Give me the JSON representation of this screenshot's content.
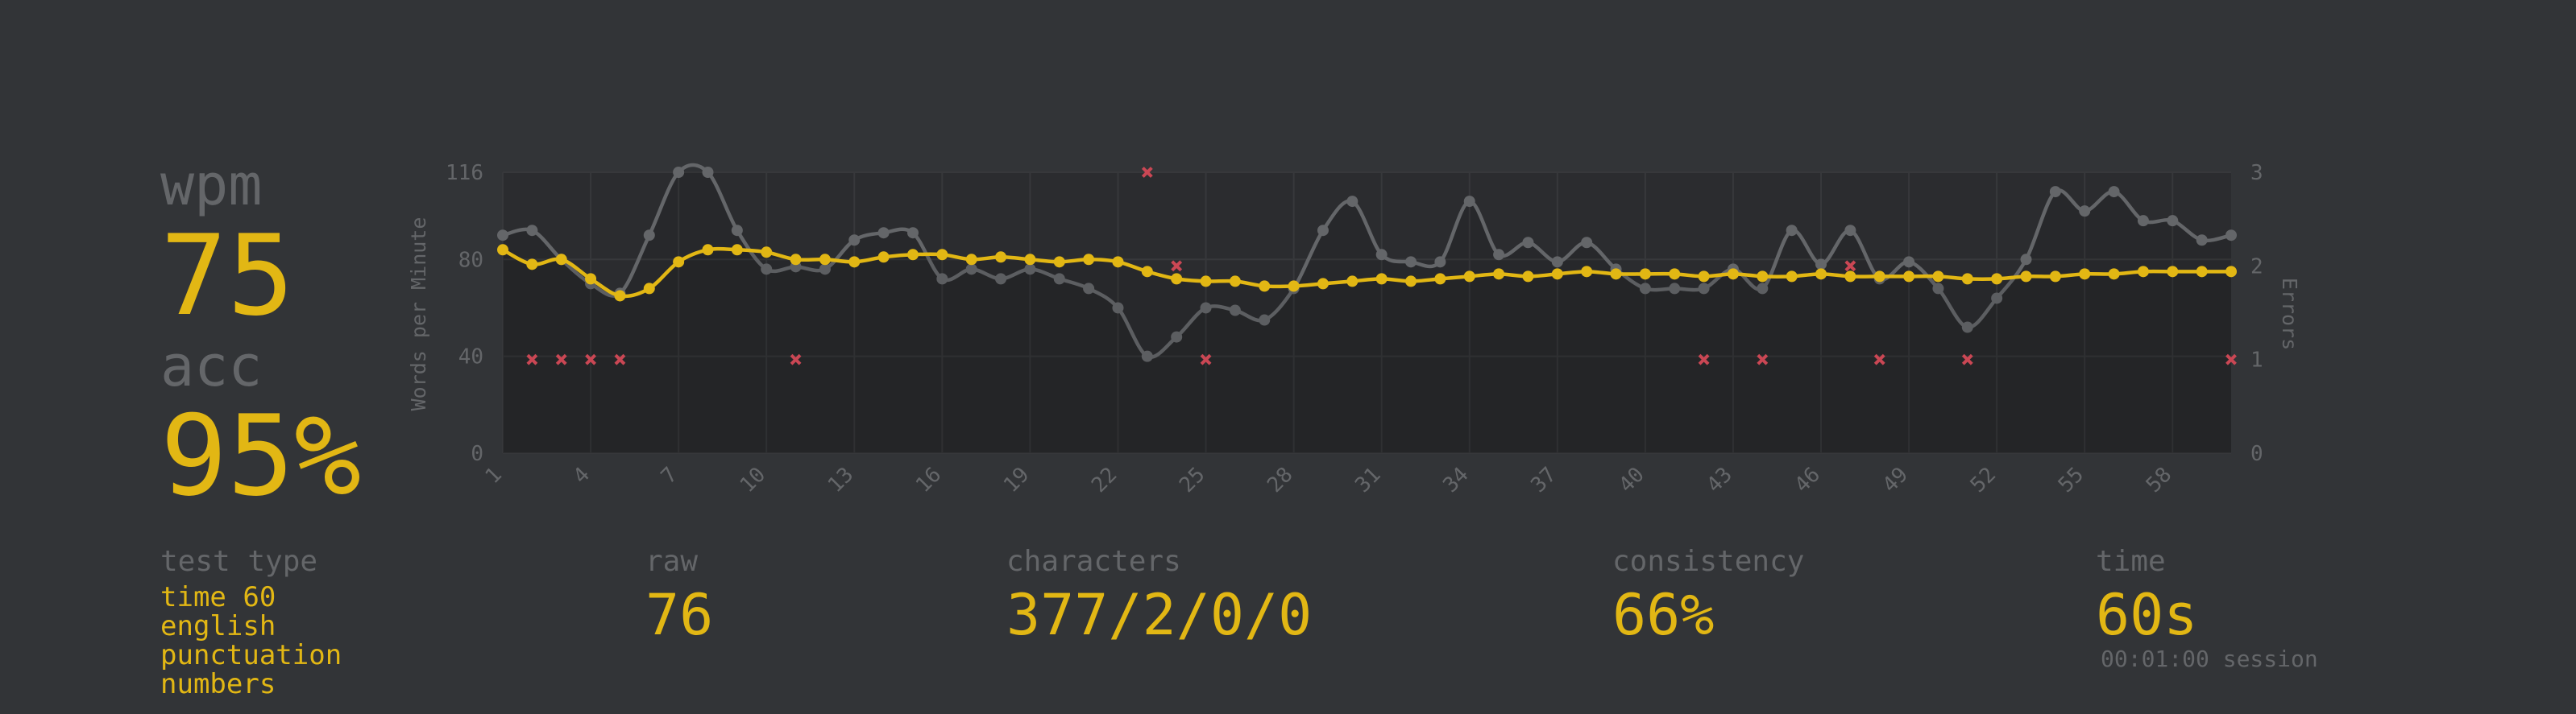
{
  "summary": {
    "wpm_label": "wpm",
    "wpm_value": "75",
    "acc_label": "acc",
    "acc_value": "95%"
  },
  "stats": {
    "test_type_label": "test type",
    "test_type_lines": [
      "time 60",
      "english",
      "punctuation",
      "numbers"
    ],
    "raw_label": "raw",
    "raw_value": "76",
    "characters_label": "characters",
    "characters_value": "377/2/0/0",
    "consistency_label": "consistency",
    "consistency_value": "66%",
    "time_label": "time",
    "time_value": "60s",
    "session": "00:01:00 session"
  },
  "colors": {
    "background": "#323437",
    "accent": "#e2b714",
    "raw": "#646669",
    "error": "#ca4754"
  },
  "chart_data": {
    "type": "line",
    "ylabel": "Words per Minute",
    "y2label": "Errors",
    "ylim": [
      0,
      116
    ],
    "y2lim": [
      0,
      3
    ],
    "yticks": [
      "0",
      "40",
      "80",
      "116"
    ],
    "y2ticks": [
      "0",
      "1",
      "2",
      "3"
    ],
    "x": [
      1,
      2,
      3,
      4,
      5,
      6,
      7,
      8,
      9,
      10,
      11,
      12,
      13,
      14,
      15,
      16,
      17,
      18,
      19,
      20,
      21,
      22,
      23,
      24,
      25,
      26,
      27,
      28,
      29,
      30,
      31,
      32,
      33,
      34,
      35,
      36,
      37,
      38,
      39,
      40,
      41,
      42,
      43,
      44,
      45,
      46,
      47,
      48,
      49,
      50,
      51,
      52,
      53,
      54,
      55,
      56,
      57,
      58,
      59,
      60
    ],
    "xticks": [
      "1",
      "4",
      "7",
      "10",
      "13",
      "16",
      "19",
      "22",
      "25",
      "28",
      "31",
      "34",
      "37",
      "40",
      "43",
      "46",
      "49",
      "52",
      "55",
      "58"
    ],
    "series": [
      {
        "name": "wpm",
        "values": [
          84,
          78,
          80,
          72,
          65,
          68,
          79,
          84,
          84,
          83,
          80,
          80,
          79,
          81,
          82,
          82,
          80,
          81,
          80,
          79,
          80,
          79,
          75,
          72,
          71,
          71,
          69,
          69,
          70,
          71,
          72,
          71,
          72,
          73,
          74,
          73,
          74,
          75,
          74,
          74,
          74,
          73,
          74,
          73,
          73,
          74,
          73,
          73,
          73,
          73,
          72,
          72,
          73,
          73,
          74,
          74,
          75,
          75,
          75,
          75
        ]
      },
      {
        "name": "raw",
        "values": [
          90,
          92,
          80,
          70,
          66,
          90,
          116,
          116,
          92,
          76,
          77,
          76,
          88,
          91,
          91,
          72,
          76,
          72,
          76,
          72,
          68,
          60,
          40,
          48,
          60,
          59,
          55,
          68,
          92,
          104,
          82,
          79,
          79,
          104,
          82,
          87,
          79,
          87,
          76,
          68,
          68,
          68,
          76,
          68,
          92,
          78,
          92,
          72,
          79,
          68,
          52,
          64,
          80,
          108,
          100,
          108,
          96,
          96,
          88,
          90
        ]
      }
    ],
    "errors": [
      {
        "x": 2,
        "count": 1
      },
      {
        "x": 3,
        "count": 1
      },
      {
        "x": 4,
        "count": 1
      },
      {
        "x": 5,
        "count": 1
      },
      {
        "x": 11,
        "count": 1
      },
      {
        "x": 23,
        "count": 3
      },
      {
        "x": 24,
        "count": 2
      },
      {
        "x": 25,
        "count": 1
      },
      {
        "x": 42,
        "count": 1
      },
      {
        "x": 44,
        "count": 1
      },
      {
        "x": 47,
        "count": 2
      },
      {
        "x": 48,
        "count": 1
      },
      {
        "x": 51,
        "count": 1
      },
      {
        "x": 60,
        "count": 1
      }
    ]
  }
}
